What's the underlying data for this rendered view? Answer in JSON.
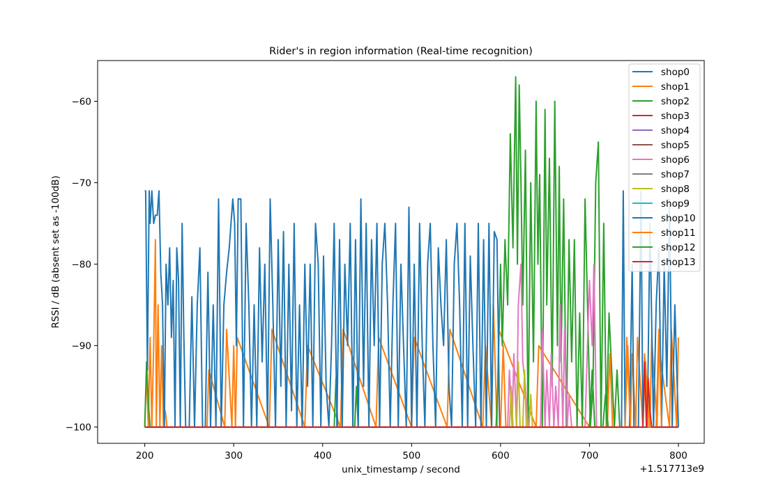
{
  "chart_data": {
    "type": "line",
    "title": "Rider's in region information (Real-time recognition)",
    "xlabel": "unix_timestamp / second",
    "ylabel": "RSSI / dB (absent set as -100dB)",
    "x_offset_label": "+1.517713e9",
    "xlim": [
      147,
      829
    ],
    "ylim": [
      -102,
      -55
    ],
    "x_ticks": [
      200,
      300,
      400,
      500,
      600,
      700,
      800
    ],
    "x_tick_labels": [
      "200",
      "300",
      "400",
      "500",
      "600",
      "700",
      "800"
    ],
    "y_ticks": [
      -100,
      -90,
      -80,
      -70,
      -60
    ],
    "y_tick_labels": [
      "−100",
      "−90",
      "−80",
      "−70",
      "−60"
    ],
    "grid": false,
    "legend_position": "top-right",
    "series": [
      {
        "name": "shop0",
        "color": "#1f77b4",
        "x": [
          200,
          800
        ],
        "values": [
          -100,
          -100
        ]
      },
      {
        "name": "shop1",
        "color": "#ff7f0e",
        "x": [
          200,
          202,
          204,
          206,
          208,
          210,
          212,
          213,
          215,
          217,
          219,
          221,
          223,
          225,
          270,
          272,
          290,
          292,
          298,
          300,
          302,
          304,
          340,
          343,
          380,
          383,
          420,
          423,
          460,
          463,
          500,
          503,
          540,
          543,
          580,
          583,
          590,
          592,
          596,
          598,
          640,
          643,
          700,
          740,
          742,
          746,
          748,
          752,
          754,
          760,
          762,
          768,
          770,
          776,
          778,
          790,
          792,
          798,
          800
        ],
        "values": [
          -100,
          -93,
          -100,
          -89,
          -100,
          -90,
          -77,
          -100,
          -85,
          -100,
          -90,
          -100,
          -98,
          -100,
          -100,
          -93,
          -100,
          -88,
          -100,
          -90,
          -100,
          -89,
          -100,
          -88,
          -100,
          -90,
          -100,
          -88,
          -100,
          -89,
          -100,
          -89,
          -100,
          -88,
          -100,
          -90,
          -100,
          -85,
          -100,
          -88,
          -100,
          -90,
          -100,
          -100,
          -89,
          -100,
          -91,
          -100,
          -89,
          -100,
          -91,
          -100,
          -89,
          -100,
          -90,
          -100,
          -88,
          -100,
          -89
        ]
      },
      {
        "name": "shop2",
        "color": "#2ca02c",
        "x": [
          200,
          202,
          204,
          206,
          413,
          415,
          417,
          436,
          438,
          440,
          595,
          597,
          600,
          602,
          605,
          608,
          611,
          614,
          617,
          619,
          621,
          623,
          625,
          628,
          631,
          634,
          637,
          640,
          642,
          644,
          647,
          650,
          652,
          655,
          658,
          661,
          664,
          666,
          668,
          671,
          674,
          677,
          680,
          683,
          686,
          689,
          692,
          695,
          698,
          701,
          704,
          707,
          710,
          713,
          716,
          719,
          722,
          725,
          728,
          731,
          734
        ],
        "values": [
          -100,
          -92,
          -97,
          -100,
          -100,
          -94,
          -100,
          -100,
          -95,
          -100,
          -100,
          -95,
          -80,
          -90,
          -77,
          -85,
          -64,
          -78,
          -57,
          -80,
          -58,
          -70,
          -85,
          -66,
          -100,
          -70,
          -92,
          -60,
          -80,
          -69,
          -100,
          -61,
          -85,
          -67,
          -95,
          -60,
          -90,
          -68,
          -92,
          -72,
          -100,
          -77,
          -92,
          -77,
          -100,
          -86,
          -100,
          -72,
          -86,
          -100,
          -95,
          -70,
          -65,
          -100,
          -75,
          -100,
          -86,
          -93,
          -100,
          -93,
          -100
        ]
      },
      {
        "name": "shop3",
        "color": "#d62728",
        "x": [
          200,
          800
        ],
        "values": [
          -100,
          -100
        ]
      },
      {
        "name": "shop4",
        "color": "#9467bd",
        "x": [
          200,
          800
        ],
        "values": [
          -100,
          -100
        ]
      },
      {
        "name": "shop5",
        "color": "#8c564b",
        "x": [
          200,
          800
        ],
        "values": [
          -100,
          -100
        ]
      },
      {
        "name": "shop6",
        "color": "#e377c2",
        "x": [
          608,
          610,
          613,
          615,
          618,
          620,
          623,
          625,
          628,
          631,
          634,
          645,
          647,
          650,
          652,
          655,
          657,
          660,
          662,
          665,
          667,
          670,
          672,
          675,
          677,
          680,
          695,
          698,
          700,
          703,
          705,
          708
        ],
        "values": [
          -100,
          -93,
          -100,
          -91,
          -100,
          -85,
          -80,
          -92,
          -95,
          -100,
          -100,
          -100,
          -88,
          -100,
          -93,
          -100,
          -91,
          -100,
          -95,
          -100,
          -85,
          -100,
          -88,
          -100,
          -96,
          -100,
          -100,
          -89,
          -82,
          -90,
          -80,
          -100
        ]
      },
      {
        "name": "shop7",
        "color": "#7f7f7f",
        "x": [
          200,
          800
        ],
        "values": [
          -100,
          -100
        ]
      },
      {
        "name": "shop8",
        "color": "#bcbd22",
        "x": [
          610,
          612,
          614,
          618,
          620,
          622,
          625,
          627,
          629,
          632,
          634,
          636
        ],
        "values": [
          -100,
          -95,
          -100,
          -100,
          -92,
          -100,
          -100,
          -93,
          -100,
          -100,
          -96,
          -100
        ]
      },
      {
        "name": "shop9",
        "color": "#17becf",
        "x": [
          200,
          800
        ],
        "values": [
          -100,
          -100
        ]
      },
      {
        "name": "shop10",
        "color": "#1f77b4",
        "x": [
          200,
          201,
          203,
          205,
          206,
          208,
          210,
          212,
          214,
          216,
          218,
          220,
          222,
          224,
          226,
          228,
          230,
          232,
          234,
          236,
          238,
          240,
          242,
          244,
          246,
          250,
          253,
          256,
          259,
          262,
          265,
          268,
          271,
          274,
          277,
          280,
          283,
          286,
          289,
          292,
          295,
          297,
          299,
          301,
          303,
          305,
          308,
          311,
          314,
          317,
          320,
          323,
          326,
          329,
          332,
          335,
          338,
          341,
          344,
          347,
          350,
          353,
          356,
          359,
          362,
          365,
          368,
          371,
          374,
          377,
          380,
          383,
          386,
          389,
          392,
          395,
          398,
          401,
          404,
          407,
          410,
          413,
          416,
          419,
          422,
          425,
          428,
          431,
          434,
          437,
          440,
          443,
          446,
          449,
          452,
          455,
          458,
          461,
          464,
          467,
          470,
          473,
          476,
          479,
          482,
          485,
          488,
          491,
          494,
          497,
          500,
          503,
          506,
          509,
          512,
          515,
          518,
          521,
          524,
          527,
          530,
          533,
          536,
          539,
          542,
          545,
          548,
          551,
          554,
          557,
          560,
          563,
          566,
          569,
          572,
          575,
          578,
          581,
          584,
          587,
          590,
          593,
          596,
          599,
          630,
          640,
          650,
          660,
          670,
          680,
          690,
          700,
          710,
          720,
          730,
          736,
          738,
          740,
          745,
          748,
          750,
          755,
          758,
          760,
          765,
          768,
          772,
          775,
          778,
          781,
          784,
          787,
          790,
          793,
          796,
          800
        ],
        "values": [
          -71,
          -71,
          -93,
          -71,
          -75,
          -71,
          -75,
          -74,
          -74,
          -71,
          -81,
          -85,
          -100,
          -80,
          -85,
          -78,
          -89,
          -82,
          -100,
          -78,
          -82,
          -100,
          -75,
          -89,
          -100,
          -100,
          -84,
          -100,
          -85,
          -78,
          -100,
          -100,
          -81,
          -100,
          -85,
          -100,
          -72,
          -100,
          -85,
          -81,
          -78,
          -75,
          -72,
          -75,
          -90,
          -72,
          -72,
          -100,
          -75,
          -85,
          -100,
          -85,
          -100,
          -78,
          -92,
          -80,
          -100,
          -72,
          -85,
          -100,
          -77,
          -95,
          -76,
          -100,
          -80,
          -98,
          -75,
          -100,
          -85,
          -100,
          -80,
          -95,
          -80,
          -100,
          -75,
          -80,
          -100,
          -79,
          -95,
          -100,
          -90,
          -75,
          -100,
          -77,
          -100,
          -80,
          -90,
          -75,
          -100,
          -77,
          -100,
          -72,
          -95,
          -75,
          -100,
          -77,
          -90,
          -75,
          -100,
          -80,
          -75,
          -85,
          -100,
          -85,
          -75,
          -100,
          -80,
          -90,
          -100,
          -73,
          -100,
          -80,
          -100,
          -75,
          -90,
          -100,
          -80,
          -75,
          -90,
          -100,
          -78,
          -85,
          -90,
          -77,
          -95,
          -100,
          -80,
          -75,
          -85,
          -100,
          -75,
          -100,
          -79,
          -90,
          -100,
          -75,
          -100,
          -77,
          -100,
          -75,
          -100,
          -76,
          -77,
          -100,
          -100,
          -100,
          -100,
          -100,
          -100,
          -100,
          -100,
          -100,
          -100,
          -100,
          -100,
          -100,
          -71,
          -100,
          -100,
          -80,
          -100,
          -100,
          -71,
          -100,
          -100,
          -75,
          -100,
          -85,
          -78,
          -100,
          -80,
          -95,
          -72,
          -100,
          -85,
          -100
        ]
      },
      {
        "name": "shop11",
        "color": "#ff7f0e",
        "x": [
          600,
          603,
          606,
          720,
          723,
          726,
          740,
          743,
          746,
          760,
          763,
          766,
          775,
          778,
          781
        ],
        "values": [
          -100,
          -90,
          -100,
          -100,
          -91,
          -100,
          -100,
          -90,
          -100,
          -100,
          -92,
          -100,
          -100,
          -88,
          -100
        ]
      },
      {
        "name": "shop12",
        "color": "#2ca02c",
        "x": [
          700,
          703,
          706,
          715,
          718,
          721
        ],
        "values": [
          -100,
          -93,
          -100,
          -100,
          -96,
          -100
        ]
      },
      {
        "name": "shop13",
        "color": "#d62728",
        "x": [
          200,
          760,
          762,
          764,
          766,
          768,
          770,
          800
        ],
        "values": [
          -100,
          -100,
          -92,
          -100,
          -94,
          -98,
          -100,
          -100
        ]
      }
    ]
  }
}
